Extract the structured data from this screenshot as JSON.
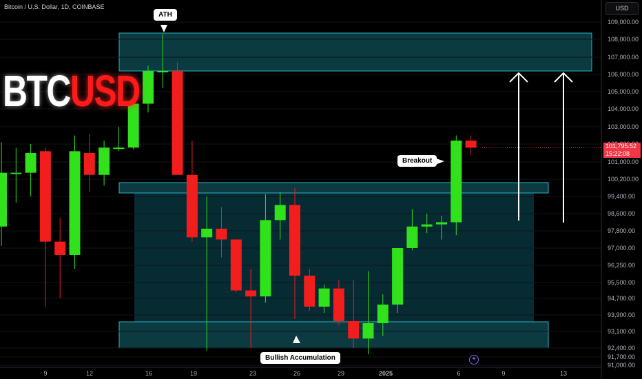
{
  "header": {
    "symbol_line": "Bitcoin / U.S. Dollar, 1D, COINBASE",
    "currency": "USD"
  },
  "logo": {
    "part1": "BTC",
    "part2": "USD"
  },
  "last_price": {
    "value": "101,795.52",
    "countdown": "15:22:08"
  },
  "annotations": {
    "ath": "ATH",
    "breakout": "Breakout",
    "accumulation": "Bullish Accumulation"
  },
  "compare_icon": "plus-circle-icon",
  "colors": {
    "up": "#31e11b",
    "down": "#f21e1e",
    "zone_border": "#2ab5c8",
    "zone_fill": "#0d3d44",
    "last_price": "#f23645"
  },
  "chart_data": {
    "type": "candlestick",
    "y_axis": {
      "ticks": [
        109000,
        108000,
        107000,
        106000,
        105000,
        104000,
        103000,
        102000,
        101000,
        100200,
        99400,
        98600,
        97800,
        97000,
        96250,
        95500,
        94700,
        93900,
        93100,
        92400,
        91700,
        91000
      ],
      "tick_labels": [
        "109,000.00",
        "108,000.00",
        "107,000.00",
        "106,000.00",
        "105,000.00",
        "104,000.00",
        "103,000.00",
        "102,000.00",
        "101,000.00",
        "100,200.00",
        "99,400.00",
        "98,600.00",
        "97,800.00",
        "97,000.00",
        "96,250.00",
        "95,500.00",
        "94,700.00",
        "93,900.00",
        "93,100.00",
        "92,400.00",
        "91,700.00",
        "91,000.00"
      ]
    },
    "x_axis": {
      "labels": [
        "9",
        "12",
        "16",
        "19",
        "23",
        "26",
        "29",
        "2025",
        "6",
        "9",
        "13"
      ]
    },
    "candles": [
      {
        "o": 98000,
        "h": 102100,
        "l": 97100,
        "c": 100500
      },
      {
        "o": 100500,
        "h": 101800,
        "l": 99100,
        "c": 100500
      },
      {
        "o": 100500,
        "h": 102000,
        "l": 99400,
        "c": 101500
      },
      {
        "o": 101600,
        "h": 101800,
        "l": 94300,
        "c": 97300
      },
      {
        "o": 97300,
        "h": 98400,
        "l": 94700,
        "c": 96700
      },
      {
        "o": 96700,
        "h": 102500,
        "l": 96100,
        "c": 101600
      },
      {
        "o": 101500,
        "h": 102600,
        "l": 99600,
        "c": 100400
      },
      {
        "o": 100400,
        "h": 102200,
        "l": 99900,
        "c": 101800
      },
      {
        "o": 101800,
        "h": 103000,
        "l": 101600,
        "c": 101800
      },
      {
        "o": 101800,
        "h": 104200,
        "l": 101700,
        "c": 104300
      },
      {
        "o": 104300,
        "h": 106500,
        "l": 103800,
        "c": 106200
      },
      {
        "o": 106200,
        "h": 108300,
        "l": 105200,
        "c": 106200
      },
      {
        "o": 106200,
        "h": 106700,
        "l": 100400,
        "c": 100400
      },
      {
        "o": 100400,
        "h": 102200,
        "l": 97300,
        "c": 97500
      },
      {
        "o": 97500,
        "h": 99400,
        "l": 92200,
        "c": 97900
      },
      {
        "o": 97900,
        "h": 98900,
        "l": 96600,
        "c": 97400
      },
      {
        "o": 97400,
        "h": 97300,
        "l": 95000,
        "c": 95100
      },
      {
        "o": 95100,
        "h": 96100,
        "l": 92400,
        "c": 94800
      },
      {
        "o": 94800,
        "h": 99500,
        "l": 94500,
        "c": 98300
      },
      {
        "o": 98300,
        "h": 99600,
        "l": 97400,
        "c": 99000
      },
      {
        "o": 99000,
        "h": 99800,
        "l": 93700,
        "c": 95800
      },
      {
        "o": 95800,
        "h": 96100,
        "l": 94100,
        "c": 94300
      },
      {
        "o": 94300,
        "h": 95400,
        "l": 94000,
        "c": 95200
      },
      {
        "o": 95200,
        "h": 95600,
        "l": 93400,
        "c": 93600
      },
      {
        "o": 93600,
        "h": 95600,
        "l": 92400,
        "c": 92800
      },
      {
        "o": 92800,
        "h": 96000,
        "l": 91900,
        "c": 93500
      },
      {
        "o": 93500,
        "h": 94900,
        "l": 92900,
        "c": 94400
      },
      {
        "o": 94400,
        "h": 97000,
        "l": 94000,
        "c": 97000
      },
      {
        "o": 97000,
        "h": 98800,
        "l": 96900,
        "c": 98000
      },
      {
        "o": 98000,
        "h": 98600,
        "l": 97700,
        "c": 98100
      },
      {
        "o": 98100,
        "h": 98500,
        "l": 97400,
        "c": 98200
      },
      {
        "o": 98200,
        "h": 102500,
        "l": 97600,
        "c": 102200
      },
      {
        "o": 102200,
        "h": 102500,
        "l": 101400,
        "c": 101795.52
      }
    ]
  }
}
